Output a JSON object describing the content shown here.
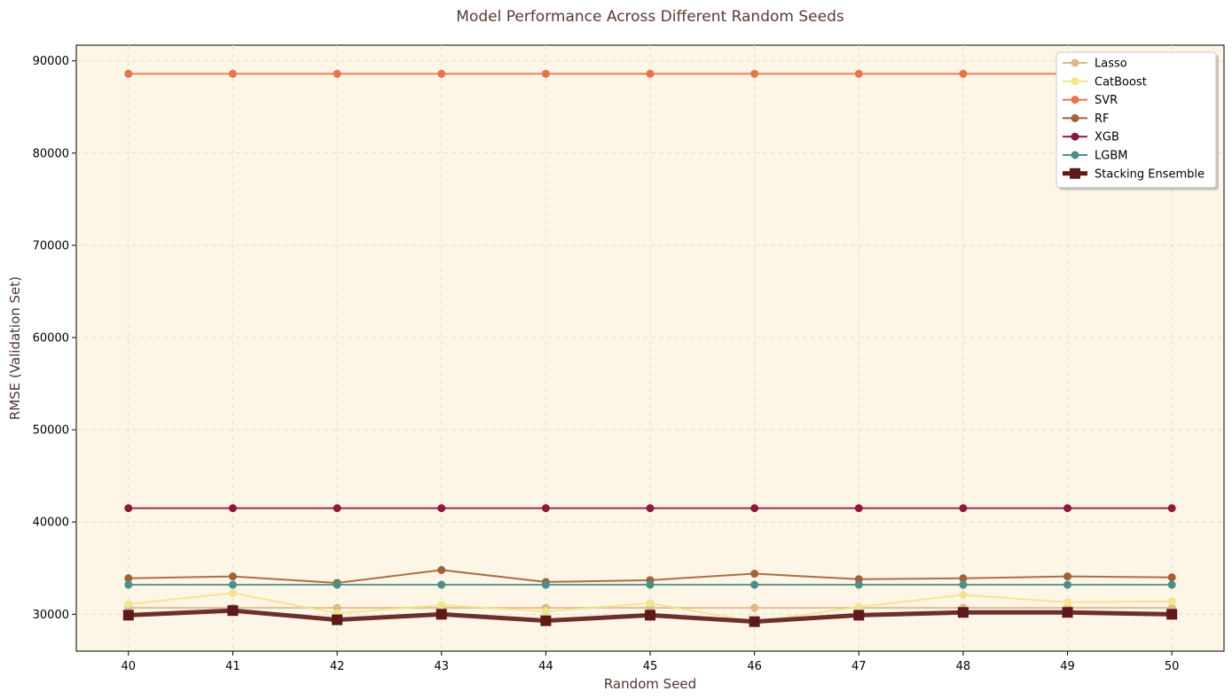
{
  "chart_data": {
    "type": "line",
    "title": "Model Performance Across Different Random Seeds",
    "xlabel": "Random Seed",
    "ylabel": "RMSE (Validation Set)",
    "x": [
      40,
      41,
      42,
      43,
      44,
      45,
      46,
      47,
      48,
      49,
      50
    ],
    "xlim": [
      39.5,
      50.5
    ],
    "ylim": [
      26000,
      91700
    ],
    "yticks": [
      30000,
      40000,
      50000,
      60000,
      70000,
      80000,
      90000
    ],
    "grid": true,
    "legend_position": "top-right",
    "colors": {
      "plot_background": "#fdf5e6",
      "grid": "#e6ddd0"
    },
    "series": [
      {
        "name": "Lasso",
        "color": "#deb887",
        "marker": "circle",
        "line_width": 2,
        "values": [
          30700,
          30700,
          30700,
          30700,
          30700,
          30700,
          30700,
          30700,
          30700,
          30700,
          30700
        ]
      },
      {
        "name": "CatBoost",
        "color": "#f0e68c",
        "marker": "circle",
        "line_width": 2,
        "values": [
          31100,
          32300,
          30100,
          31000,
          30300,
          31200,
          29200,
          30800,
          32100,
          31300,
          31400
        ]
      },
      {
        "name": "SVR",
        "color": "#e9734e",
        "marker": "circle",
        "line_width": 2,
        "values": [
          88600,
          88600,
          88600,
          88600,
          88600,
          88600,
          88600,
          88600,
          88600,
          88600,
          88600
        ]
      },
      {
        "name": "RF",
        "color": "#a0603a",
        "marker": "circle",
        "line_width": 2,
        "values": [
          33900,
          34100,
          33400,
          34800,
          33500,
          33700,
          34400,
          33800,
          33900,
          34100,
          34000
        ]
      },
      {
        "name": "XGB",
        "color": "#8b1a3a",
        "marker": "circle",
        "line_width": 2,
        "values": [
          41500,
          41500,
          41500,
          41500,
          41500,
          41500,
          41500,
          41500,
          41500,
          41500,
          41500
        ]
      },
      {
        "name": "LGBM",
        "color": "#4a9088",
        "marker": "circle",
        "line_width": 2,
        "values": [
          33200,
          33200,
          33200,
          33200,
          33200,
          33200,
          33200,
          33200,
          33200,
          33200,
          33200
        ]
      },
      {
        "name": "Stacking Ensemble",
        "color": "#5c1a1a",
        "marker": "square",
        "line_width": 5,
        "values": [
          29900,
          30400,
          29400,
          30000,
          29300,
          29900,
          29200,
          29900,
          30200,
          30200,
          30000
        ]
      }
    ]
  }
}
